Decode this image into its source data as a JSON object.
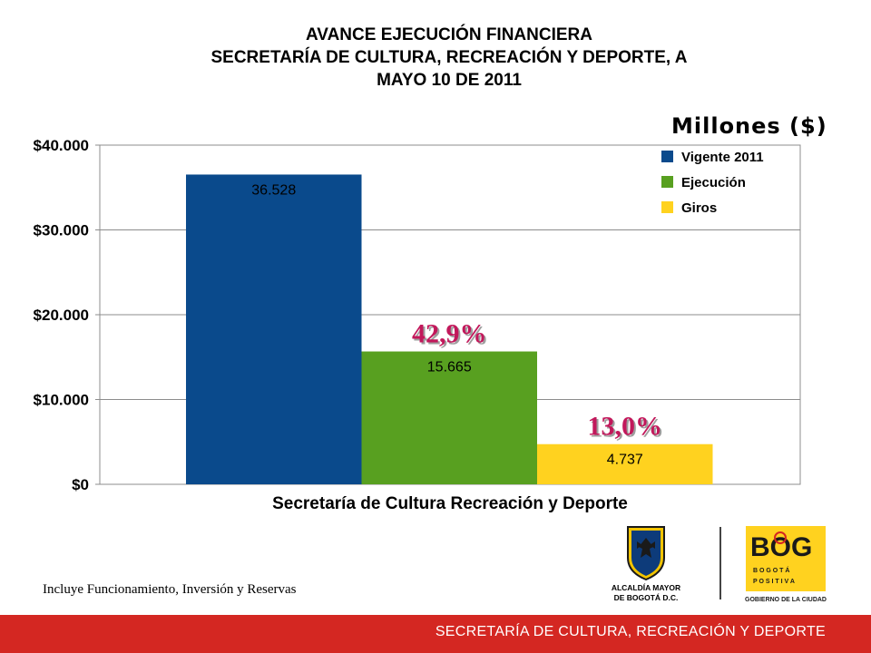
{
  "title": {
    "line1": "AVANCE EJECUCIÓN FINANCIERA",
    "line2": "SECRETARÍA DE CULTURA, RECREACIÓN Y DEPORTE, A",
    "line3": "MAYO 10 DE 2011"
  },
  "units_label": "Millones ($)",
  "chart_data": {
    "type": "bar",
    "title": "AVANCE EJECUCIÓN FINANCIERA SECRETARÍA DE CULTURA, RECREACIÓN Y DEPORTE, A MAYO 10 DE 2011",
    "categories": [
      "Secretaría de Cultura Recreación y Deporte"
    ],
    "xlabel": "Secretaría de Cultura Recreación y Deporte",
    "ylabel": "",
    "ylim": [
      0,
      40000
    ],
    "yticks": [
      0,
      10000,
      20000,
      30000,
      40000
    ],
    "ytick_labels": [
      "$0",
      "$10.000",
      "$20.000",
      "$30.000",
      "$40.000"
    ],
    "grid": true,
    "legend_position": "top-right",
    "series": [
      {
        "name": "Vigente 2011",
        "values": [
          36528
        ],
        "label": "36.528",
        "color": "#0a4a8c"
      },
      {
        "name": "Ejecución",
        "values": [
          15665
        ],
        "label": "15.665",
        "color": "#58a020",
        "percent_label": "42,9%"
      },
      {
        "name": "Giros",
        "values": [
          4737
        ],
        "label": "4.737",
        "color": "#ffd21f",
        "percent_label": "13,0%"
      }
    ],
    "percent_color": "#c2185b"
  },
  "footnote": "Incluye Funcionamiento, Inversión y Reservas",
  "logos": {
    "alcaldia_line1": "ALCALDÍA MAYOR",
    "alcaldia_line2": "DE BOGOTÁ D.C.",
    "bog_text": "BOG",
    "bogota_spaced": "B O G O T Á",
    "positiva_spaced": "P O S I T I V A",
    "gobierno": "GOBIERNO DE LA CIUDAD"
  },
  "footer": {
    "text": "SECRETARÍA DE CULTURA, RECREACIÓN Y DEPORTE",
    "color": "#d42722"
  }
}
